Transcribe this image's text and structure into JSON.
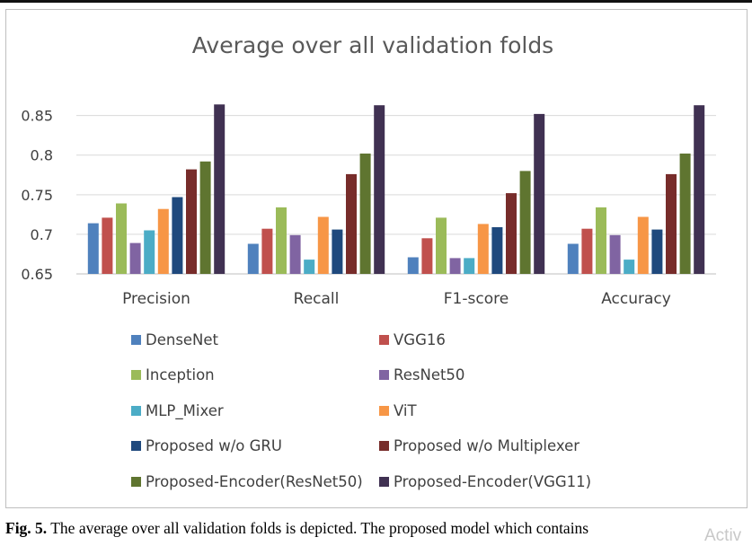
{
  "chart_data": {
    "type": "bar",
    "title": "Average over all validation folds",
    "categories": [
      "Precision",
      "Recall",
      "F1-score",
      "Accuracy"
    ],
    "ylim": [
      0.65,
      0.87
    ],
    "yticks": [
      "0.65",
      "0.7",
      "0.75",
      "0.8",
      "0.85"
    ],
    "ytick_values": [
      0.65,
      0.7,
      0.75,
      0.8,
      0.85
    ],
    "grid": true,
    "legend_position": "bottom",
    "series": [
      {
        "name": "DenseNet",
        "color": "#4f81bd",
        "values": [
          0.714,
          0.688,
          0.671,
          0.688
        ]
      },
      {
        "name": "VGG16",
        "color": "#c0504d",
        "values": [
          0.721,
          0.707,
          0.695,
          0.707
        ]
      },
      {
        "name": "Inception",
        "color": "#9bbb59",
        "values": [
          0.739,
          0.734,
          0.721,
          0.734
        ]
      },
      {
        "name": "ResNet50",
        "color": "#8064a2",
        "values": [
          0.689,
          0.699,
          0.67,
          0.699
        ]
      },
      {
        "name": "MLP_Mixer",
        "color": "#4bacc6",
        "values": [
          0.705,
          0.668,
          0.67,
          0.668
        ]
      },
      {
        "name": "ViT",
        "color": "#f79646",
        "values": [
          0.732,
          0.722,
          0.713,
          0.722
        ]
      },
      {
        "name": "Proposed w/o GRU",
        "color": "#1f497d",
        "values": [
          0.747,
          0.706,
          0.709,
          0.706
        ]
      },
      {
        "name": "Proposed w/o Multiplexer",
        "color": "#772c2a",
        "values": [
          0.782,
          0.776,
          0.752,
          0.776
        ]
      },
      {
        "name": "Proposed-Encoder(ResNet50)",
        "color": "#5f7530",
        "values": [
          0.792,
          0.802,
          0.78,
          0.802
        ]
      },
      {
        "name": "Proposed-Encoder(VGG11)",
        "color": "#403152",
        "values": [
          0.864,
          0.863,
          0.852,
          0.863
        ]
      }
    ]
  },
  "caption": {
    "figure_label": "Fig. 5.",
    "text": " The average over all validation folds is depicted. The proposed model which contains"
  },
  "watermark": "Activ"
}
